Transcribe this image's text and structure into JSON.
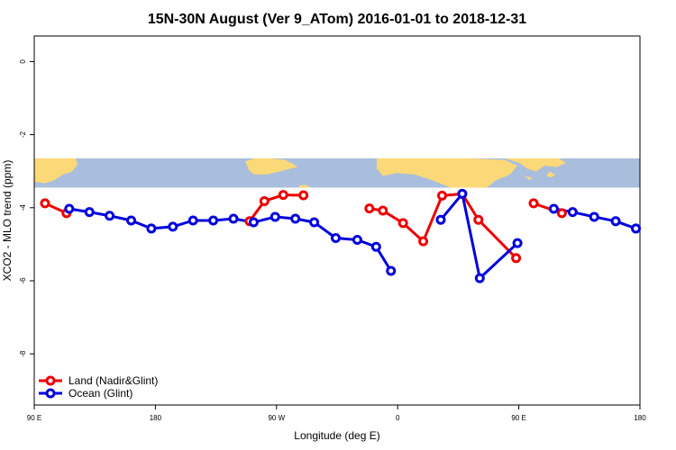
{
  "chart_data": {
    "type": "line",
    "title": "15N-30N August (Ver 9_ATom)   2016-01-01 to 2018-12-31",
    "xlabel": "Longitude (deg E)",
    "ylabel": "XCO2 - MLO trend (ppm)",
    "xlim": [
      90,
      540
    ],
    "ylim": [
      -9.4,
      0.7
    ],
    "x_ticks": [
      {
        "value": 90,
        "label": "90 E"
      },
      {
        "value": 180,
        "label": "180"
      },
      {
        "value": 270,
        "label": "90 W"
      },
      {
        "value": 360,
        "label": "0"
      },
      {
        "value": 450,
        "label": "90 E"
      },
      {
        "value": 540,
        "label": "180"
      }
    ],
    "y_ticks": [
      {
        "value": 0,
        "label": "0"
      },
      {
        "value": -2,
        "label": "-2"
      },
      {
        "value": -4,
        "label": "-4"
      },
      {
        "value": -6,
        "label": "-6"
      },
      {
        "value": -8,
        "label": "-8"
      }
    ],
    "map_band": {
      "y_top": -2.65,
      "y_bottom": -3.45,
      "ocean_color": "#a8bedc",
      "land_color": "#fbd878"
    },
    "legend": {
      "position": "bottom-left"
    },
    "series": [
      {
        "name": "Land (Nadir&Glint)",
        "color": "#ee0000",
        "segments": [
          [
            [
              98,
              -3.88
            ],
            [
              114,
              -4.15
            ]
          ],
          [
            [
              250,
              -4.37
            ],
            [
              261,
              -3.82
            ],
            [
              275,
              -3.65
            ],
            [
              290,
              -3.66
            ]
          ],
          [
            [
              339,
              -4.02
            ],
            [
              349,
              -4.08
            ],
            [
              364,
              -4.42
            ],
            [
              379,
              -4.92
            ],
            [
              393,
              -3.67
            ],
            [
              408,
              -3.62
            ],
            [
              420,
              -4.33
            ],
            [
              448,
              -5.38
            ]
          ],
          [
            [
              461,
              -3.88
            ],
            [
              482,
              -4.15
            ]
          ]
        ]
      },
      {
        "name": "Ocean (Glint)",
        "color": "#0000dd",
        "segments": [
          [
            [
              116,
              -4.03
            ],
            [
              131,
              -4.12
            ],
            [
              146,
              -4.22
            ],
            [
              162,
              -4.35
            ],
            [
              177,
              -4.57
            ],
            [
              193,
              -4.52
            ],
            [
              208,
              -4.35
            ],
            [
              223,
              -4.35
            ],
            [
              238,
              -4.3
            ],
            [
              253,
              -4.4
            ],
            [
              269,
              -4.25
            ],
            [
              284,
              -4.3
            ],
            [
              298,
              -4.4
            ],
            [
              314,
              -4.83
            ],
            [
              330,
              -4.88
            ],
            [
              344,
              -5.07
            ],
            [
              355,
              -5.73
            ]
          ],
          [
            [
              392,
              -4.33
            ],
            [
              408,
              -3.62
            ],
            [
              421,
              -5.93
            ],
            [
              449,
              -4.97
            ]
          ],
          [
            [
              476,
              -4.03
            ],
            [
              490,
              -4.12
            ],
            [
              506,
              -4.25
            ],
            [
              522,
              -4.37
            ],
            [
              537,
              -4.57
            ]
          ]
        ]
      }
    ]
  }
}
